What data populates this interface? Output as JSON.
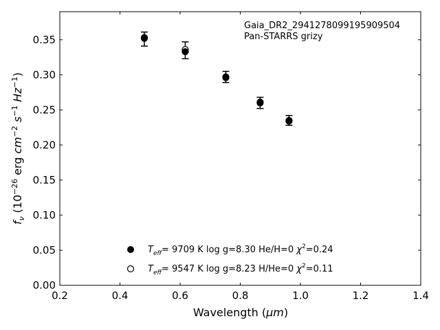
{
  "chart_data": {
    "type": "scatter",
    "xlabel_main": "Wavelength (",
    "xlabel_unit": "μm",
    "xlabel_close": ")",
    "xlim": [
      0.2,
      1.4
    ],
    "ylim": [
      0.0,
      0.39
    ],
    "x_ticks": [
      0.2,
      0.4,
      0.6,
      0.8,
      1.0,
      1.2,
      1.4
    ],
    "y_ticks": [
      0.0,
      0.05,
      0.1,
      0.15,
      0.2,
      0.25,
      0.3,
      0.35
    ],
    "grid": false,
    "annotation": {
      "line1": "Gaia_DR2_2941278099195909504",
      "line2": "Pan-STARRS grizy"
    },
    "legend": [
      {
        "marker": "filled",
        "label": "T_eff=  9709 K  log g=8.30  He/H=0  χ²=0.24"
      },
      {
        "marker": "open",
        "label": "T_eff=  9547 K  log g=8.23  H/He=0  χ²=0.11"
      }
    ],
    "observed": {
      "x": [
        0.481,
        0.617,
        0.752,
        0.866,
        0.962
      ],
      "y": [
        0.351,
        0.335,
        0.297,
        0.26,
        0.235
      ],
      "yerr": [
        0.01,
        0.012,
        0.008,
        0.008,
        0.007
      ]
    },
    "series": [
      {
        "marker": "filled",
        "x": [
          0.481,
          0.617,
          0.752,
          0.866,
          0.962
        ],
        "y": [
          0.353,
          0.333,
          0.297,
          0.261,
          0.235
        ]
      },
      {
        "marker": "open",
        "x": [
          0.481,
          0.617,
          0.752,
          0.866,
          0.962
        ],
        "y": [
          0.352,
          0.336,
          0.296,
          0.26,
          0.234
        ]
      }
    ]
  }
}
